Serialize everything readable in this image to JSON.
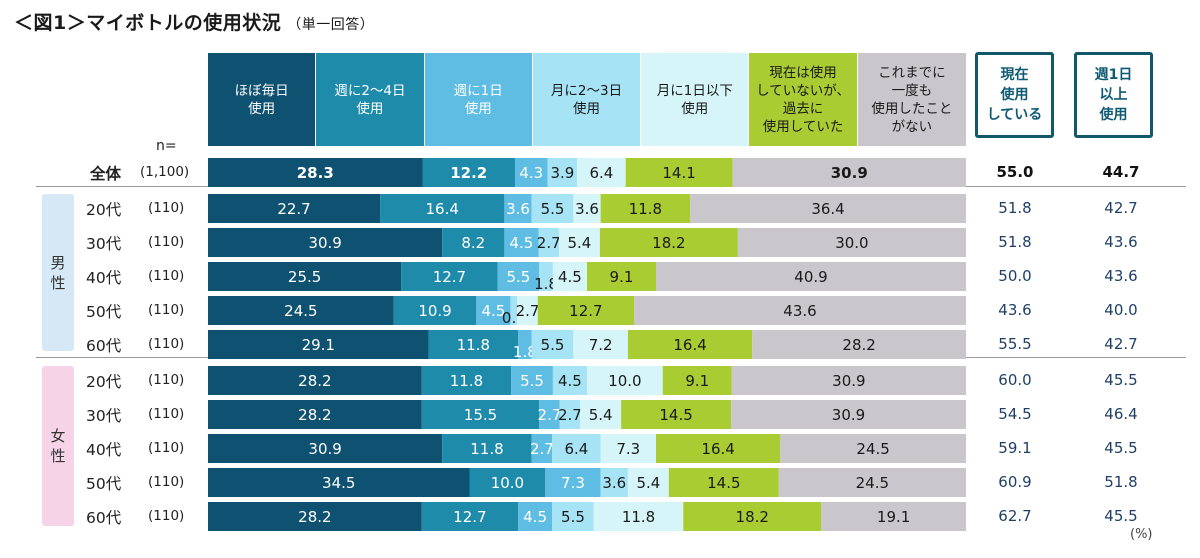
{
  "title": "＜図1＞マイボトルの使用状況",
  "subtitle": "（単一回答）",
  "n_label": "n=",
  "unit_label": "(%)",
  "colors": [
    "#0f5171",
    "#1f8bab",
    "#5fbde3",
    "#a5e3f5",
    "#d5f5f9",
    "#a9cc32",
    "#c9c7cb"
  ],
  "header_text_colors": [
    "#ffffff",
    "#ffffff",
    "#ffffff",
    "#1a1a1a",
    "#1a1a1a",
    "#1a1a1a",
    "#1a1a1a"
  ],
  "summary_headers": [
    "現在\n使用\nしている",
    "週1日\n以上\n使用"
  ],
  "groups": [
    "男\n性",
    "女\n性"
  ],
  "chart_data": {
    "type": "bar",
    "orientation": "horizontal",
    "stacked": true,
    "xlim": [
      0,
      100
    ],
    "series": [
      {
        "name": "ほぼ毎日\n使用",
        "values": [
          28.3,
          22.7,
          30.9,
          25.5,
          24.5,
          29.1,
          28.2,
          28.2,
          30.9,
          34.5,
          28.2
        ]
      },
      {
        "name": "週に2〜4日\n使用",
        "values": [
          12.2,
          16.4,
          8.2,
          12.7,
          10.9,
          11.8,
          11.8,
          15.5,
          11.8,
          10.0,
          12.7
        ]
      },
      {
        "name": "週に1日\n使用",
        "values": [
          4.3,
          3.6,
          4.5,
          5.5,
          4.5,
          1.8,
          5.5,
          2.7,
          2.7,
          7.3,
          4.5
        ]
      },
      {
        "name": "月に2〜3日\n使用",
        "values": [
          3.9,
          5.5,
          2.7,
          1.8,
          0.9,
          5.5,
          4.5,
          2.7,
          6.4,
          3.6,
          5.5
        ]
      },
      {
        "name": "月に1日以下\n使用",
        "values": [
          6.4,
          3.6,
          5.4,
          4.5,
          2.7,
          7.2,
          10.0,
          5.4,
          7.3,
          5.4,
          11.8
        ]
      },
      {
        "name": "現在は使用\nしていないが、\n過去に\n使用していた",
        "values": [
          14.1,
          11.8,
          18.2,
          9.1,
          12.7,
          16.4,
          9.1,
          14.5,
          16.4,
          14.5,
          18.2
        ]
      },
      {
        "name": "これまでに\n一度も\n使用したこと\nがない",
        "values": [
          30.9,
          36.4,
          30.0,
          40.9,
          43.6,
          28.2,
          30.9,
          30.9,
          24.5,
          24.5,
          19.1
        ]
      }
    ],
    "rows": [
      {
        "label": "全体",
        "n": "(1,100)",
        "using": "55.0",
        "weekly": "44.7"
      },
      {
        "label": "20代",
        "n": "(110)",
        "using": "51.8",
        "weekly": "42.7"
      },
      {
        "label": "30代",
        "n": "(110)",
        "using": "51.8",
        "weekly": "43.6"
      },
      {
        "label": "40代",
        "n": "(110)",
        "using": "50.0",
        "weekly": "43.6"
      },
      {
        "label": "50代",
        "n": "(110)",
        "using": "43.6",
        "weekly": "40.0"
      },
      {
        "label": "60代",
        "n": "(110)",
        "using": "55.5",
        "weekly": "42.7"
      },
      {
        "label": "20代",
        "n": "(110)",
        "using": "60.0",
        "weekly": "45.5"
      },
      {
        "label": "30代",
        "n": "(110)",
        "using": "54.5",
        "weekly": "46.4"
      },
      {
        "label": "40代",
        "n": "(110)",
        "using": "59.1",
        "weekly": "45.5"
      },
      {
        "label": "50代",
        "n": "(110)",
        "using": "60.9",
        "weekly": "51.8"
      },
      {
        "label": "60代",
        "n": "(110)",
        "using": "62.7",
        "weekly": "45.5"
      }
    ]
  }
}
